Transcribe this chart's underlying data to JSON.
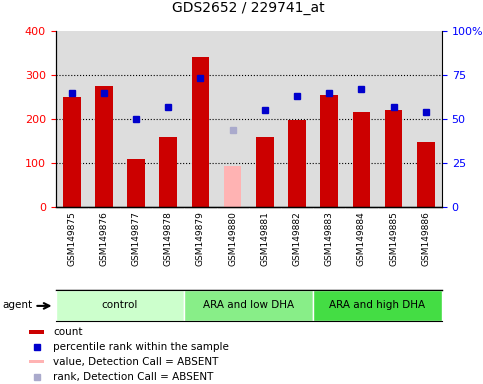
{
  "title": "GDS2652 / 229741_at",
  "samples": [
    "GSM149875",
    "GSM149876",
    "GSM149877",
    "GSM149878",
    "GSM149879",
    "GSM149880",
    "GSM149881",
    "GSM149882",
    "GSM149883",
    "GSM149884",
    "GSM149885",
    "GSM149886"
  ],
  "bar_values": [
    250,
    275,
    110,
    160,
    340,
    null,
    160,
    197,
    255,
    215,
    220,
    148
  ],
  "bar_absent": [
    null,
    null,
    null,
    null,
    null,
    93,
    null,
    null,
    null,
    null,
    null,
    null
  ],
  "dot_values": [
    65,
    65,
    50,
    57,
    73,
    null,
    55,
    63,
    65,
    67,
    57,
    54
  ],
  "dot_absent": [
    null,
    null,
    null,
    null,
    null,
    44,
    null,
    null,
    null,
    null,
    null,
    null
  ],
  "bar_color": "#cc0000",
  "bar_absent_color": "#ffb3b3",
  "dot_color": "#0000cc",
  "dot_absent_color": "#aaaacc",
  "ylim_left": [
    0,
    400
  ],
  "ylim_right": [
    0,
    100
  ],
  "yticks_left": [
    0,
    100,
    200,
    300,
    400
  ],
  "ytick_labels_left": [
    "0",
    "100",
    "200",
    "300",
    "400"
  ],
  "yticks_right": [
    0,
    25,
    50,
    75,
    100
  ],
  "ytick_labels_right": [
    "0",
    "25",
    "50",
    "75",
    "100%"
  ],
  "groups": [
    {
      "label": "control",
      "start": 0,
      "end": 3,
      "color": "#ccffcc"
    },
    {
      "label": "ARA and low DHA",
      "start": 4,
      "end": 7,
      "color": "#88ee88"
    },
    {
      "label": "ARA and high DHA",
      "start": 8,
      "end": 11,
      "color": "#44dd44"
    }
  ],
  "background_color": "#ffffff",
  "plot_bg_color": "#dddddd",
  "xtick_bg_color": "#cccccc",
  "gridlines": [
    100,
    200,
    300
  ],
  "legend_items": [
    {
      "label": "count",
      "color": "#cc0000",
      "type": "square"
    },
    {
      "label": "percentile rank within the sample",
      "color": "#0000cc",
      "type": "dot"
    },
    {
      "label": "value, Detection Call = ABSENT",
      "color": "#ffb3b3",
      "type": "square"
    },
    {
      "label": "rank, Detection Call = ABSENT",
      "color": "#aaaacc",
      "type": "dot"
    }
  ]
}
